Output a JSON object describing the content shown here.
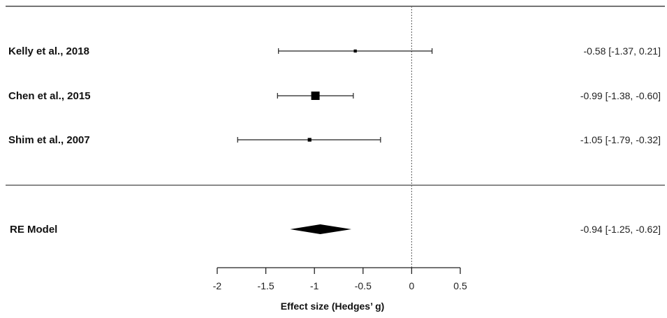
{
  "chart_data": {
    "type": "forest",
    "xlabel": "Effect size (Hedges’ g)",
    "xlim": [
      -2,
      0.5
    ],
    "xticks": [
      "-2",
      "-1.5",
      "-1",
      "-0.5",
      "0",
      "0.5"
    ],
    "reference_line": 0,
    "studies": [
      {
        "label": "Kelly et al., 2018",
        "estimate": -0.58,
        "ci": [
          -1.37,
          0.21
        ],
        "text": "-0.58 [-1.37,  0.21]",
        "weight": 0.15
      },
      {
        "label": "Chen et al., 2015",
        "estimate": -0.99,
        "ci": [
          -1.38,
          -0.6
        ],
        "text": "-0.99 [-1.38, -0.60]",
        "weight": 1.0
      },
      {
        "label": "Shim et al., 2007",
        "estimate": -1.05,
        "ci": [
          -1.79,
          -0.32
        ],
        "text": "-1.05 [-1.79, -0.32]",
        "weight": 0.25
      }
    ],
    "summary": {
      "label": "RE Model",
      "estimate": -0.94,
      "ci": [
        -1.25,
        -0.62
      ],
      "text": "-0.94 [-1.25, -0.62]"
    }
  }
}
